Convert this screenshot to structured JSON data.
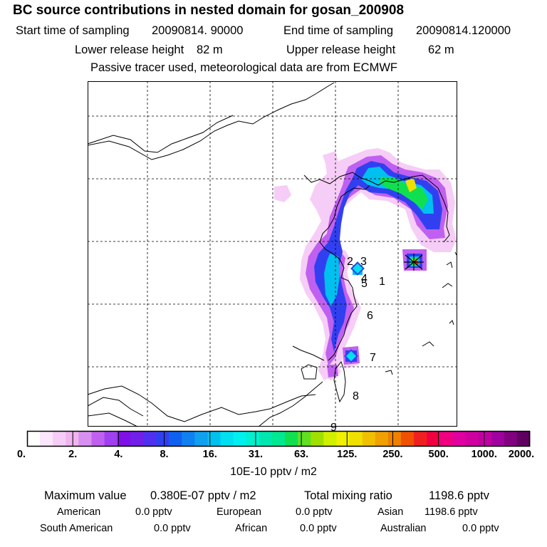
{
  "header": {
    "title": "BC  source contributions in nested domain for gosan_200908",
    "start_label": "Start time of sampling",
    "start_value": "20090814. 90000",
    "end_label": "End time of sampling",
    "end_value": "20090814.120000",
    "lower_label": "Lower release height",
    "lower_value": "82 m",
    "upper_label": "Upper release height",
    "upper_value": "62 m",
    "tracer_note": "Passive tracer used, meteorological data are from ECMWF"
  },
  "map": {
    "site_labels": [
      "1",
      "2",
      "3",
      "4",
      "5",
      "6",
      "7",
      "8",
      "9"
    ]
  },
  "colorbar": {
    "tick_labels": [
      "0.",
      "2.",
      "4.",
      "8.",
      "16.",
      "31.",
      "63.",
      "125.",
      "250.",
      "500.",
      "1000.",
      "2000."
    ],
    "colors": [
      "#ffffff",
      "#fbe6fb",
      "#f6cdf6",
      "#f0b4f0",
      "#d890f0",
      "#c060f0",
      "#a040f0",
      "#8010e8",
      "#7020e8",
      "#5030f0",
      "#3040f0",
      "#1060f0",
      "#1080f0",
      "#10a0f0",
      "#00c0f0",
      "#00e0f0",
      "#00f0f0",
      "#00f0d0",
      "#00e8b0",
      "#00e890",
      "#10e050",
      "#60e020",
      "#a0e000",
      "#d0f000",
      "#f0f000",
      "#f0e000",
      "#f0c000",
      "#f0a000",
      "#f08000",
      "#f05000",
      "#f02020",
      "#f00040",
      "#f00080",
      "#e000a0",
      "#d000a0",
      "#c000a0",
      "#a000a0",
      "#800080",
      "#600060"
    ],
    "units": "10E-10 pptv / m2"
  },
  "summary": {
    "max_label": "Maximum value",
    "max_value": "0.380E-07 pptv / m2",
    "total_label": "Total mixing ratio",
    "total_value": "1198.6 pptv",
    "sources": [
      {
        "name": "American",
        "value": "0.0 pptv"
      },
      {
        "name": "European",
        "value": "0.0 pptv"
      },
      {
        "name": "Asian",
        "value": "1198.6 pptv"
      },
      {
        "name": "South American",
        "value": "0.0 pptv"
      },
      {
        "name": "African",
        "value": "0.0 pptv"
      },
      {
        "name": "Australian",
        "value": "0.0 pptv"
      }
    ]
  }
}
